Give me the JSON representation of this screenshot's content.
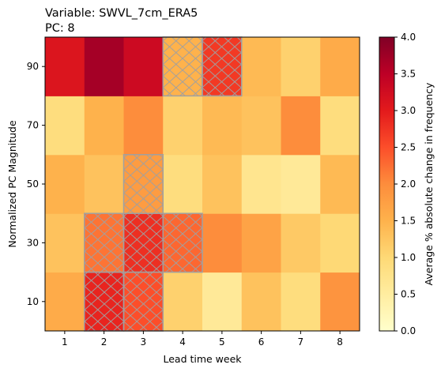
{
  "chart_data": {
    "type": "heatmap",
    "title_lines": [
      "Variable: SWVL_7cm_ERA5",
      "PC: 8"
    ],
    "xlabel": "Lead time week",
    "ylabel": "Normalized PC Magnitude",
    "x_categories": [
      "1",
      "2",
      "3",
      "4",
      "5",
      "6",
      "7",
      "8"
    ],
    "y_categories": [
      "10",
      "30",
      "50",
      "70",
      "90"
    ],
    "values": [
      [
        1.6,
        2.9,
        2.5,
        1.1,
        0.6,
        1.3,
        0.9,
        1.9
      ],
      [
        1.3,
        2.2,
        2.8,
        2.3,
        2.0,
        1.7,
        1.2,
        1.0
      ],
      [
        1.5,
        1.3,
        1.8,
        0.9,
        1.3,
        0.7,
        0.6,
        1.4
      ],
      [
        0.9,
        1.5,
        2.0,
        1.1,
        1.4,
        1.3,
        2.0,
        0.9
      ],
      [
        3.1,
        3.7,
        3.3,
        1.5,
        2.7,
        1.4,
        1.1,
        1.6
      ]
    ],
    "hatched": [
      [
        false,
        true,
        true,
        false,
        false,
        false,
        false,
        false
      ],
      [
        false,
        true,
        true,
        true,
        false,
        false,
        false,
        false
      ],
      [
        false,
        false,
        true,
        false,
        false,
        false,
        false,
        false
      ],
      [
        false,
        false,
        false,
        false,
        false,
        false,
        false,
        false
      ],
      [
        false,
        false,
        false,
        true,
        true,
        false,
        false,
        false
      ]
    ],
    "colorbar": {
      "label": "Average % absolute change in frequency",
      "range": [
        0.0,
        4.0
      ],
      "ticks": [
        "0.0",
        "0.5",
        "1.0",
        "1.5",
        "2.0",
        "2.5",
        "3.0",
        "3.5",
        "4.0"
      ],
      "colormap": "YlOrRd"
    },
    "hatch_color": "#a0a0a0"
  }
}
